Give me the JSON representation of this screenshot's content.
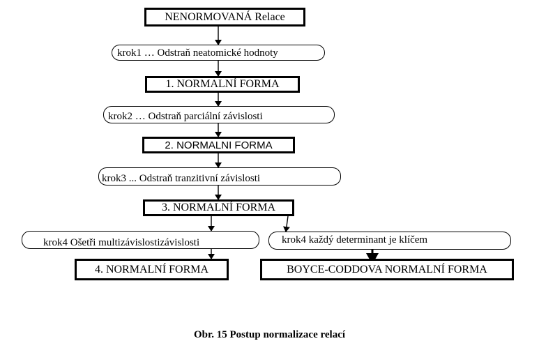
{
  "diagram": {
    "start": "NENORMOVANÁ  Relace",
    "step1": "krok1 … Odstraň  neatomické hodnoty",
    "nf1": "1. NORMALNÍ  FORMA",
    "step2": "krok2 …    Odstraň parciální závislosti",
    "nf2": "2. NORMALNI  FORMA",
    "step3": "krok3 ...    Odstraň tranzitivní závislosti",
    "nf3": "3. NORMALNÍ  FORMA",
    "step4a": "krok4   Ošetři multizávislostizávislosti",
    "nf4": "4. NORMALNÍ  FORMA",
    "step4b": "krok4  každý determinant je klíčem",
    "bcnf": "BOYCE-CODDOVA  NORMALNÍ  FORMA"
  },
  "caption": "Obr. 15  Postup normalizace relací"
}
